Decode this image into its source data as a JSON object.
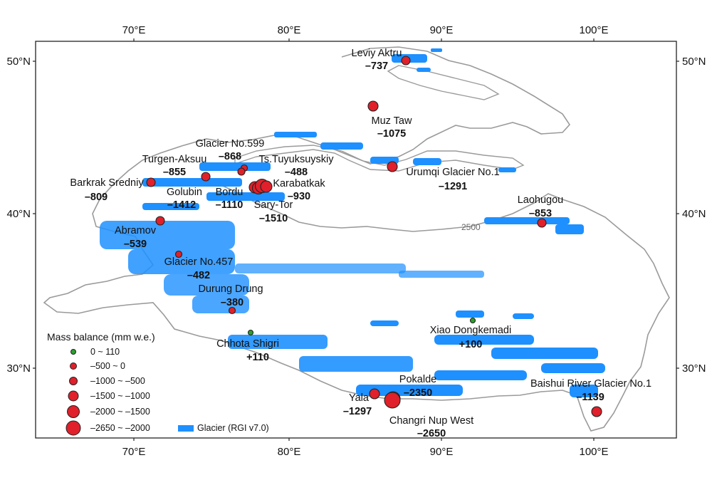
{
  "axes": {
    "lon_ticks": [
      "70°E",
      "80°E",
      "90°E",
      "100°E"
    ],
    "lat_ticks": [
      "50°N",
      "40°N",
      "30°N"
    ]
  },
  "contour_label": "2500",
  "legend": {
    "title": "Mass balance (mm w.e.)",
    "classes": [
      {
        "label": "0 ~ 110",
        "color": "#2ca02c"
      },
      {
        "label": "–500 ~ 0",
        "color": "#e0202a"
      },
      {
        "label": "–1000 ~ –500",
        "color": "#e0202a"
      },
      {
        "label": "–1500 ~ –1000",
        "color": "#e0202a"
      },
      {
        "label": "–2000 ~ –1500",
        "color": "#e0202a"
      },
      {
        "label": "–2650 ~ –2000",
        "color": "#e0202a"
      }
    ],
    "glacier_label": "Glacier (RGI v7.0)",
    "glacier_color": "#1e90ff"
  },
  "glaciers": [
    {
      "name": "Leviy Aktru",
      "value": "–737"
    },
    {
      "name": "Muz Taw",
      "value": "–1075"
    },
    {
      "name": "Glacier No.599",
      "value": "–868"
    },
    {
      "name": "Turgen-Aksuu",
      "value": "–855"
    },
    {
      "name": "Ts.Tuyuksuyskiy",
      "value": "–488"
    },
    {
      "name": "Urumqi Glacier No.1",
      "value": "–1291"
    },
    {
      "name": "Barkrak Sredniy",
      "value": "–809"
    },
    {
      "name": "Golubin",
      "value": "–1412"
    },
    {
      "name": "Bordu",
      "value": "–1110"
    },
    {
      "name": "Karabatkak",
      "value": "–930"
    },
    {
      "name": "Sary-Tor",
      "value": "–1510"
    },
    {
      "name": "Laohugou",
      "value": "–853"
    },
    {
      "name": "Abramov",
      "value": "–539"
    },
    {
      "name": "Glacier No.457",
      "value": "–482"
    },
    {
      "name": "Durung Drung",
      "value": "–380"
    },
    {
      "name": "Xiao Dongkemadi",
      "value": "+100"
    },
    {
      "name": "Chhota Shigri",
      "value": "+110"
    },
    {
      "name": "Pokalde",
      "value": "–2350"
    },
    {
      "name": "Yala",
      "value": "–1297"
    },
    {
      "name": "Changri Nup West",
      "value": "–2650"
    },
    {
      "name": "Baishui River Glacier No.1",
      "value": "–1139"
    }
  ]
}
